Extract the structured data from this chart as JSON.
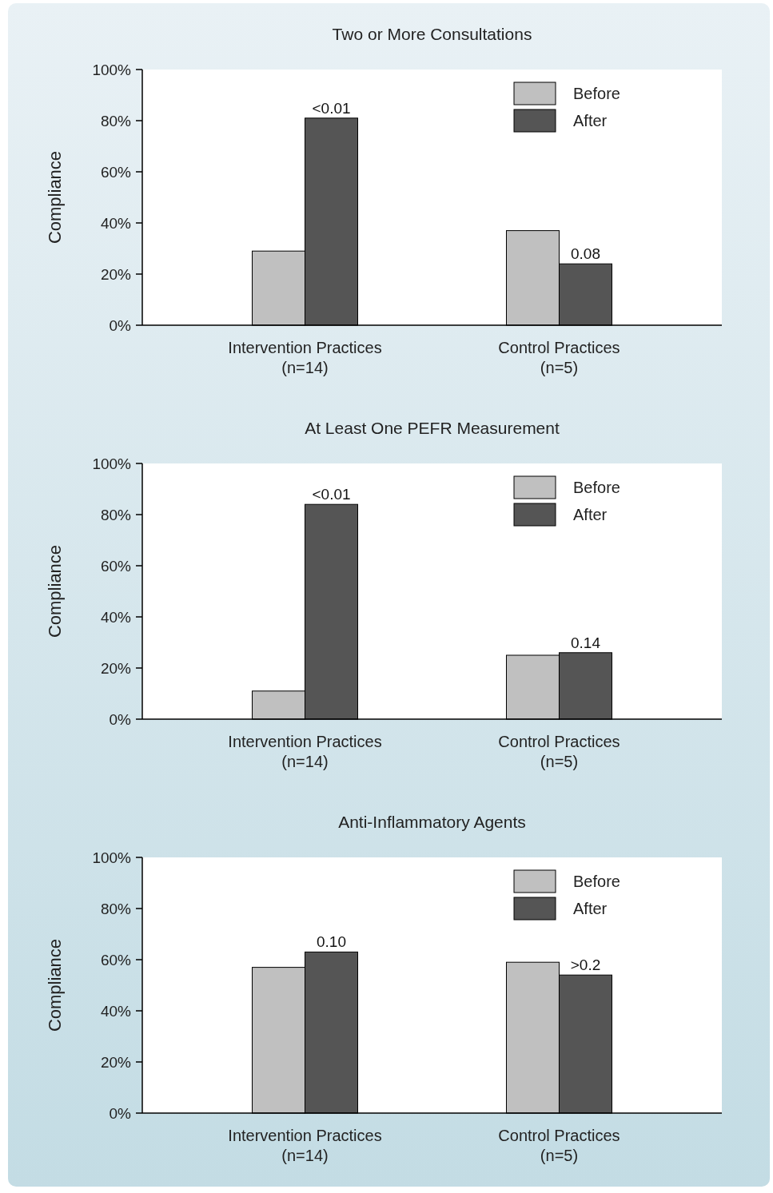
{
  "chart_data": [
    {
      "type": "bar",
      "title": "Two or More Consultations",
      "ylabel": "Compliance",
      "categories": [
        "Intervention Practices\n(n=14)",
        "Control Practices\n(n=5)"
      ],
      "series": [
        {
          "name": "Before",
          "color": "#c0c0c0",
          "values": [
            29,
            37
          ]
        },
        {
          "name": "After",
          "color": "#555555",
          "values": [
            81,
            24
          ]
        }
      ],
      "annotations": [
        {
          "text": "<0.01",
          "x": "Intervention Practices\n(n=14)",
          "y": 81
        },
        {
          "text": "0.08",
          "x": "Control Practices\n(n=5)",
          "y": 24
        }
      ],
      "ylim": [
        0,
        100
      ],
      "yticks": [
        {
          "value": 0,
          "label": "0%"
        },
        {
          "value": 20,
          "label": "20%"
        },
        {
          "value": 40,
          "label": "40%"
        },
        {
          "value": 60,
          "label": "60%"
        },
        {
          "value": 80,
          "label": "80%"
        },
        {
          "value": 100,
          "label": "100%"
        }
      ],
      "legend": "top right"
    },
    {
      "type": "bar",
      "title": "At Least One PEFR Measurement",
      "ylabel": "Compliance",
      "categories": [
        "Intervention Practices\n(n=14)",
        "Control Practices\n(n=5)"
      ],
      "series": [
        {
          "name": "Before",
          "color": "#c0c0c0",
          "values": [
            11,
            25
          ]
        },
        {
          "name": "After",
          "color": "#555555",
          "values": [
            84,
            26
          ]
        }
      ],
      "annotations": [
        {
          "text": "<0.01",
          "x": "Intervention Practices\n(n=14)",
          "y": 84
        },
        {
          "text": "0.14",
          "x": "Control Practices\n(n=5)",
          "y": 26
        }
      ],
      "ylim": [
        0,
        100
      ],
      "yticks": [
        {
          "value": 0,
          "label": "0%"
        },
        {
          "value": 20,
          "label": "20%"
        },
        {
          "value": 40,
          "label": "40%"
        },
        {
          "value": 60,
          "label": "60%"
        },
        {
          "value": 80,
          "label": "80%"
        },
        {
          "value": 100,
          "label": "100%"
        }
      ],
      "legend": "top right"
    },
    {
      "type": "bar",
      "title": "Anti-Inflammatory Agents",
      "ylabel": "Compliance",
      "categories": [
        "Intervention Practices\n(n=14)",
        "Control Practices\n(n=5)"
      ],
      "series": [
        {
          "name": "Before",
          "color": "#c0c0c0",
          "values": [
            57,
            59
          ]
        },
        {
          "name": "After",
          "color": "#555555",
          "values": [
            63,
            54
          ]
        }
      ],
      "annotations": [
        {
          "text": "0.10",
          "x": "Intervention Practices\n(n=14)",
          "y": 63
        },
        {
          "text": ">0.2",
          "x": "Control Practices\n(n=5)",
          "y": 54
        }
      ],
      "ylim": [
        0,
        100
      ],
      "yticks": [
        {
          "value": 0,
          "label": "0%"
        },
        {
          "value": 20,
          "label": "20%"
        },
        {
          "value": 40,
          "label": "40%"
        },
        {
          "value": 60,
          "label": "60%"
        },
        {
          "value": 80,
          "label": "80%"
        },
        {
          "value": 100,
          "label": "100%"
        }
      ],
      "legend": "top right"
    }
  ]
}
